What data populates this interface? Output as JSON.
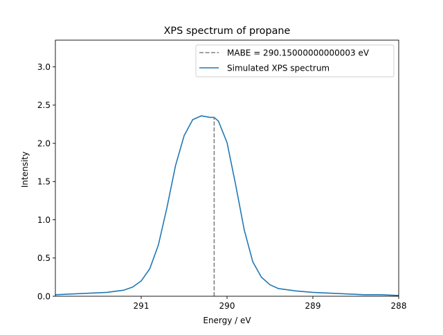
{
  "chart_data": {
    "type": "line",
    "title": "XPS spectrum of propane",
    "xlabel": "Energy / eV",
    "ylabel": "Intensity",
    "xlim": [
      292.0,
      288.0
    ],
    "x_reversed": true,
    "ylim": [
      0.0,
      3.35
    ],
    "grid": false,
    "legend_placement": "top-right",
    "x_ticks": [
      291,
      290,
      289,
      288
    ],
    "x_tick_labels": [
      "291",
      "290",
      "289",
      "288"
    ],
    "y_ticks": [
      0.0,
      0.5,
      1.0,
      1.5,
      2.0,
      2.5,
      3.0
    ],
    "y_tick_labels": [
      "0.0",
      "0.5",
      "1.0",
      "1.5",
      "2.0",
      "2.5",
      "3.0"
    ],
    "series": [
      {
        "name": "Simulated XPS spectrum",
        "style": "solid",
        "color": "#1f77b4",
        "x": [
          292.0,
          291.8,
          291.6,
          291.4,
          291.2,
          291.1,
          291.0,
          290.9,
          290.8,
          290.7,
          290.6,
          290.5,
          290.4,
          290.3,
          290.2,
          290.15,
          290.1,
          290.0,
          289.9,
          289.8,
          289.7,
          289.6,
          289.5,
          289.4,
          289.2,
          289.0,
          288.8,
          288.6,
          288.4,
          288.2,
          288.0
        ],
        "y": [
          0.02,
          0.03,
          0.04,
          0.05,
          0.08,
          0.12,
          0.2,
          0.36,
          0.67,
          1.16,
          1.71,
          2.1,
          2.31,
          2.36,
          2.34,
          2.34,
          2.29,
          2.01,
          1.46,
          0.87,
          0.45,
          0.25,
          0.15,
          0.1,
          0.07,
          0.05,
          0.04,
          0.03,
          0.02,
          0.02,
          0.01
        ]
      },
      {
        "name": "MABE = 290.15000000000003 eV",
        "style": "dashed",
        "color": "#808080",
        "x": [
          290.15,
          290.15
        ],
        "y": [
          0.0,
          2.34
        ]
      }
    ],
    "legend_order": [
      1,
      0
    ]
  }
}
